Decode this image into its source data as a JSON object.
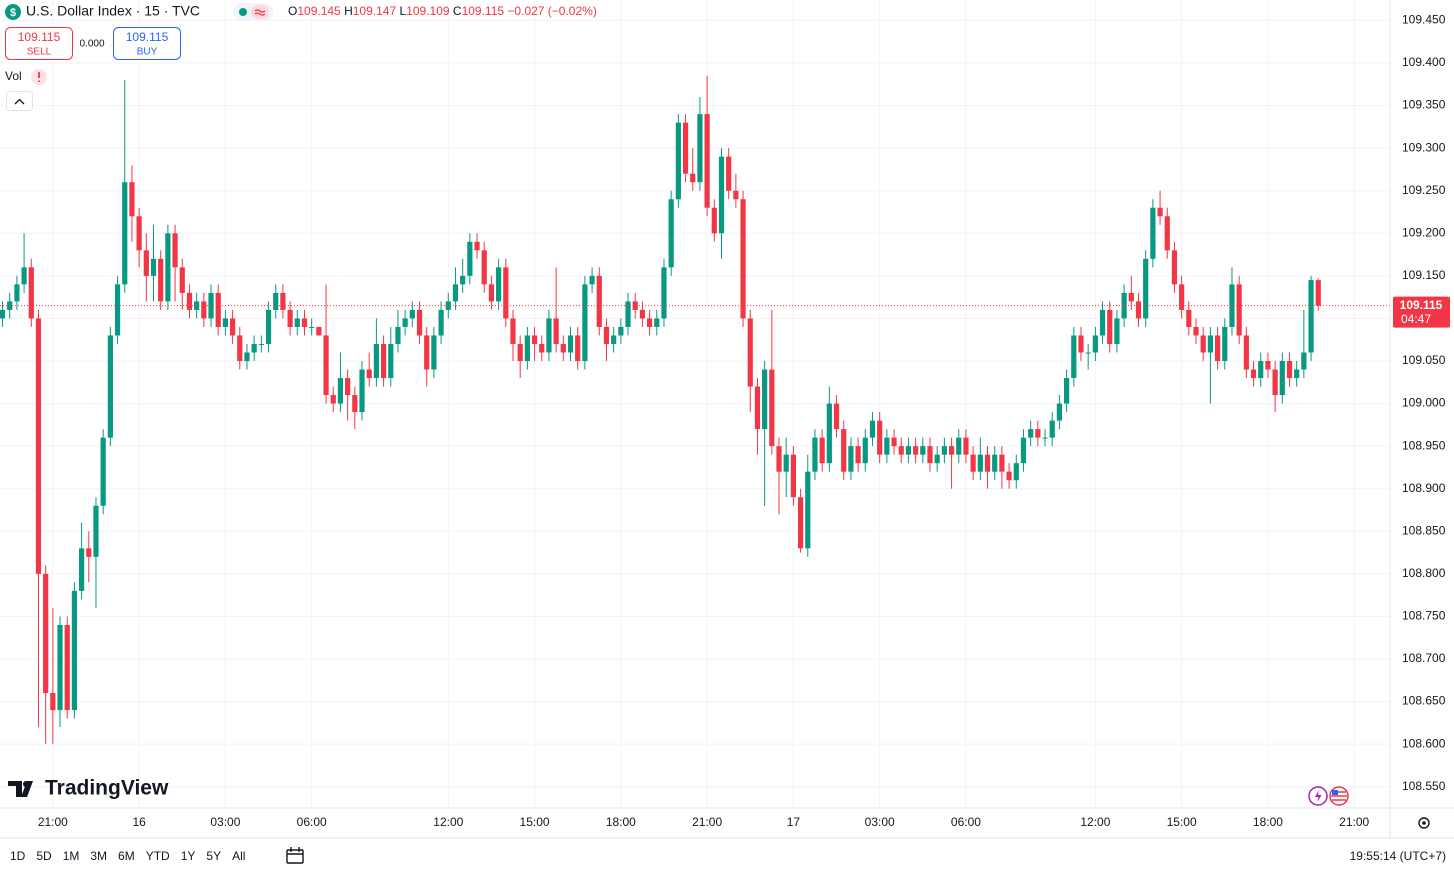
{
  "header": {
    "icon": "$",
    "symbol": "U.S. Dollar Index · 15 · TVC",
    "ohlc": [
      {
        "k": "O",
        "v": "109.145"
      },
      {
        "k": "H",
        "v": "109.147"
      },
      {
        "k": "L",
        "v": "109.109"
      },
      {
        "k": "C",
        "v": "109.115"
      }
    ],
    "change": "−0.027 (−0.02%)",
    "sell_price": "109.115",
    "sell": "SELL",
    "spread": "0.000",
    "buy_price": "109.115",
    "buy": "BUY",
    "vol": "Vol"
  },
  "last_price": {
    "value": 109.115,
    "label": "109.115",
    "countdown": "04:47"
  },
  "brand": "TradingView",
  "toolbar": [
    "1D",
    "5D",
    "1M",
    "3M",
    "6M",
    "YTD",
    "1Y",
    "5Y",
    "All"
  ],
  "clock": "19:55:14 (UTC+7)",
  "chart_data": {
    "type": "candlestick",
    "up_color": "#089981",
    "down_color": "#f23645",
    "grid": true,
    "xlim": [
      -0.35,
      192.98
    ],
    "xticks": [
      {
        "value": 7,
        "label": "21:00"
      },
      {
        "value": 19,
        "label": "16"
      },
      {
        "value": 31,
        "label": "03:00"
      },
      {
        "value": 43,
        "label": "06:00"
      },
      {
        "value": 62,
        "label": "12:00"
      },
      {
        "value": 74,
        "label": "15:00"
      },
      {
        "value": 86,
        "label": "18:00"
      },
      {
        "value": 98,
        "label": "21:00"
      },
      {
        "value": 110,
        "label": "17"
      },
      {
        "value": 122,
        "label": "03:00"
      },
      {
        "value": 134,
        "label": "06:00"
      },
      {
        "value": 152,
        "label": "12:00"
      },
      {
        "value": 164,
        "label": "15:00"
      },
      {
        "value": 176,
        "label": "18:00"
      },
      {
        "value": 188,
        "label": "21:00"
      }
    ],
    "ylim": [
      108.525,
      109.474
    ],
    "yticks": [
      {
        "value": 108.55,
        "label": "108.550"
      },
      {
        "value": 108.6,
        "label": "108.600"
      },
      {
        "value": 108.65,
        "label": "108.650"
      },
      {
        "value": 108.7,
        "label": "108.700"
      },
      {
        "value": 108.75,
        "label": "108.750"
      },
      {
        "value": 108.8,
        "label": "108.800"
      },
      {
        "value": 108.85,
        "label": "108.850"
      },
      {
        "value": 108.9,
        "label": "108.900"
      },
      {
        "value": 108.95,
        "label": "108.950"
      },
      {
        "value": 109.0,
        "label": "109.000"
      },
      {
        "value": 109.05,
        "label": "109.050"
      },
      {
        "value": 109.1,
        "label": "109.100"
      },
      {
        "value": 109.15,
        "label": "109.150"
      },
      {
        "value": 109.2,
        "label": "109.200"
      },
      {
        "value": 109.25,
        "label": "109.250"
      },
      {
        "value": 109.3,
        "label": "109.300"
      },
      {
        "value": 109.35,
        "label": "109.350"
      },
      {
        "value": 109.4,
        "label": "109.400"
      },
      {
        "value": 109.45,
        "label": "109.450"
      }
    ],
    "open": [
      109.1,
      109.11,
      109.12,
      109.14,
      109.16,
      109.1,
      108.8,
      108.66,
      108.64,
      108.74,
      108.64,
      108.78,
      108.83,
      108.82,
      108.88,
      108.96,
      109.08,
      109.14,
      109.26,
      109.22,
      109.18,
      109.15,
      109.17,
      109.12,
      109.2,
      109.16,
      109.13,
      109.11,
      109.12,
      109.1,
      109.13,
      109.09,
      109.1,
      109.08,
      109.05,
      109.06,
      109.07,
      109.07,
      109.11,
      109.13,
      109.11,
      109.09,
      109.1,
      109.09,
      109.09,
      109.08,
      109.01,
      109.0,
      109.03,
      109.01,
      108.99,
      109.04,
      109.03,
      109.07,
      109.03,
      109.07,
      109.09,
      109.1,
      109.11,
      109.08,
      109.04,
      109.08,
      109.11,
      109.12,
      109.14,
      109.15,
      109.19,
      109.18,
      109.14,
      109.12,
      109.16,
      109.1,
      109.07,
      109.05,
      109.08,
      109.07,
      109.06,
      109.1,
      109.07,
      109.06,
      109.08,
      109.05,
      109.14,
      109.15,
      109.09,
      109.07,
      109.08,
      109.09,
      109.12,
      109.11,
      109.1,
      109.09,
      109.1,
      109.16,
      109.24,
      109.33,
      109.27,
      109.26,
      109.34,
      109.23,
      109.2,
      109.29,
      109.25,
      109.24,
      109.1,
      109.02,
      108.97,
      109.04,
      108.95,
      108.92,
      108.94,
      108.89,
      108.83,
      108.92,
      108.96,
      108.93,
      109.0,
      108.97,
      108.92,
      108.95,
      108.93,
      108.96,
      108.98,
      108.94,
      108.96,
      108.95,
      108.94,
      108.95,
      108.94,
      108.95,
      108.93,
      108.94,
      108.95,
      108.94,
      108.96,
      108.94,
      108.92,
      108.94,
      108.92,
      108.94,
      108.92,
      108.91,
      108.93,
      108.96,
      108.97,
      108.96,
      108.96,
      108.98,
      109.0,
      109.03,
      109.08,
      109.06,
      109.06,
      109.08,
      109.11,
      109.07,
      109.1,
      109.13,
      109.12,
      109.1,
      109.17,
      109.23,
      109.22,
      109.18,
      109.14,
      109.11,
      109.09,
      109.08,
      109.06,
      109.08,
      109.05,
      109.09,
      109.14,
      109.08,
      109.04,
      109.03,
      109.05,
      109.04,
      109.01,
      109.05,
      109.03,
      109.04,
      109.06,
      109.145
    ],
    "high": [
      109.12,
      109.13,
      109.15,
      109.2,
      109.17,
      109.11,
      108.81,
      108.76,
      108.75,
      108.75,
      108.79,
      108.86,
      108.85,
      108.89,
      108.97,
      109.09,
      109.15,
      109.38,
      109.28,
      109.23,
      109.2,
      109.21,
      109.18,
      109.21,
      109.21,
      109.17,
      109.14,
      109.13,
      109.13,
      109.14,
      109.14,
      109.11,
      109.11,
      109.09,
      109.07,
      109.08,
      109.08,
      109.12,
      109.14,
      109.14,
      109.12,
      109.11,
      109.11,
      109.1,
      109.09,
      109.14,
      109.02,
      109.06,
      109.04,
      109.02,
      109.05,
      109.06,
      109.1,
      109.08,
      109.09,
      109.11,
      109.11,
      109.12,
      109.12,
      109.09,
      109.09,
      109.12,
      109.13,
      109.16,
      109.17,
      109.2,
      109.2,
      109.19,
      109.15,
      109.17,
      109.17,
      109.11,
      109.08,
      109.09,
      109.09,
      109.08,
      109.11,
      109.16,
      109.08,
      109.09,
      109.09,
      109.15,
      109.16,
      109.16,
      109.1,
      109.09,
      109.1,
      109.13,
      109.13,
      109.12,
      109.11,
      109.11,
      109.17,
      109.25,
      109.34,
      109.34,
      109.3,
      109.36,
      109.385,
      109.24,
      109.3,
      109.3,
      109.27,
      109.25,
      109.11,
      109.03,
      109.05,
      109.11,
      108.96,
      108.96,
      108.95,
      108.9,
      108.94,
      108.97,
      108.97,
      109.02,
      109.01,
      108.98,
      108.96,
      108.96,
      108.97,
      108.99,
      108.99,
      108.97,
      108.97,
      108.96,
      108.96,
      108.96,
      108.96,
      108.96,
      108.95,
      108.96,
      108.96,
      108.97,
      108.97,
      108.95,
      108.96,
      108.95,
      108.95,
      108.95,
      108.93,
      108.94,
      108.97,
      108.98,
      108.98,
      108.97,
      108.99,
      109.01,
      109.04,
      109.09,
      109.09,
      109.07,
      109.09,
      109.12,
      109.12,
      109.11,
      109.14,
      109.15,
      109.13,
      109.18,
      109.24,
      109.25,
      109.23,
      109.19,
      109.15,
      109.12,
      109.1,
      109.09,
      109.09,
      109.09,
      109.1,
      109.16,
      109.15,
      109.09,
      109.05,
      109.06,
      109.06,
      109.05,
      109.06,
      109.06,
      109.05,
      109.11,
      109.15,
      109.147
    ],
    "low": [
      109.09,
      109.1,
      109.11,
      109.13,
      109.09,
      108.62,
      108.6,
      108.6,
      108.62,
      108.63,
      108.63,
      108.77,
      108.79,
      108.76,
      108.87,
      108.95,
      109.07,
      109.13,
      109.19,
      109.16,
      109.12,
      109.12,
      109.11,
      109.11,
      109.12,
      109.11,
      109.1,
      109.1,
      109.09,
      109.09,
      109.08,
      109.08,
      109.07,
      109.04,
      109.04,
      109.05,
      109.06,
      109.06,
      109.1,
      109.1,
      109.08,
      109.08,
      109.08,
      109.08,
      109.08,
      109.0,
      108.99,
      108.99,
      108.98,
      108.97,
      108.98,
      109.02,
      109.02,
      109.02,
      109.02,
      109.06,
      109.08,
      109.09,
      109.07,
      109.02,
      109.03,
      109.07,
      109.1,
      109.11,
      109.13,
      109.14,
      109.17,
      109.13,
      109.11,
      109.11,
      109.09,
      109.05,
      109.03,
      109.04,
      109.05,
      109.05,
      109.05,
      109.06,
      109.05,
      109.05,
      109.04,
      109.04,
      109.13,
      109.08,
      109.05,
      109.06,
      109.07,
      109.08,
      109.1,
      109.09,
      109.08,
      109.08,
      109.09,
      109.15,
      109.23,
      109.26,
      109.25,
      109.25,
      109.22,
      109.19,
      109.17,
      109.24,
      109.23,
      109.09,
      108.99,
      108.94,
      108.88,
      108.94,
      108.87,
      108.89,
      108.88,
      108.825,
      108.82,
      108.91,
      108.92,
      108.92,
      108.96,
      108.91,
      108.91,
      108.92,
      108.92,
      108.95,
      108.93,
      108.93,
      108.94,
      108.93,
      108.93,
      108.93,
      108.93,
      108.92,
      108.92,
      108.93,
      108.9,
      108.93,
      108.93,
      108.91,
      108.91,
      108.9,
      108.91,
      108.9,
      108.9,
      108.9,
      108.92,
      108.95,
      108.95,
      108.95,
      108.95,
      108.97,
      108.99,
      109.02,
      109.05,
      109.04,
      109.05,
      109.07,
      109.06,
      109.06,
      109.09,
      109.11,
      109.09,
      109.09,
      109.16,
      109.21,
      109.17,
      109.13,
      109.1,
      109.08,
      109.07,
      109.05,
      109.0,
      109.04,
      109.04,
      109.08,
      109.07,
      109.03,
      109.02,
      109.02,
      109.03,
      108.99,
      109.0,
      109.02,
      109.02,
      109.03,
      109.05,
      109.109
    ],
    "close": [
      109.11,
      109.12,
      109.14,
      109.16,
      109.1,
      108.8,
      108.66,
      108.64,
      108.74,
      108.64,
      108.78,
      108.83,
      108.82,
      108.88,
      108.96,
      109.08,
      109.14,
      109.26,
      109.22,
      109.18,
      109.15,
      109.17,
      109.12,
      109.2,
      109.16,
      109.13,
      109.11,
      109.12,
      109.1,
      109.13,
      109.09,
      109.1,
      109.08,
      109.05,
      109.06,
      109.07,
      109.07,
      109.11,
      109.13,
      109.11,
      109.09,
      109.1,
      109.09,
      109.09,
      109.08,
      109.01,
      109.0,
      109.03,
      109.01,
      108.99,
      109.04,
      109.03,
      109.07,
      109.03,
      109.07,
      109.09,
      109.1,
      109.11,
      109.08,
      109.04,
      109.08,
      109.11,
      109.12,
      109.14,
      109.15,
      109.19,
      109.18,
      109.14,
      109.12,
      109.16,
      109.1,
      109.07,
      109.05,
      109.08,
      109.07,
      109.06,
      109.1,
      109.07,
      109.06,
      109.08,
      109.05,
      109.14,
      109.15,
      109.09,
      109.07,
      109.08,
      109.09,
      109.12,
      109.11,
      109.1,
      109.09,
      109.1,
      109.16,
      109.24,
      109.33,
      109.27,
      109.26,
      109.34,
      109.23,
      109.2,
      109.29,
      109.25,
      109.24,
      109.1,
      109.02,
      108.97,
      109.04,
      108.95,
      108.92,
      108.94,
      108.89,
      108.83,
      108.92,
      108.96,
      108.93,
      109.0,
      108.97,
      108.92,
      108.95,
      108.93,
      108.96,
      108.98,
      108.94,
      108.96,
      108.95,
      108.94,
      108.95,
      108.94,
      108.95,
      108.93,
      108.94,
      108.95,
      108.94,
      108.96,
      108.94,
      108.92,
      108.94,
      108.92,
      108.94,
      108.92,
      108.91,
      108.93,
      108.96,
      108.97,
      108.96,
      108.96,
      108.98,
      109.0,
      109.03,
      109.08,
      109.06,
      109.06,
      109.08,
      109.11,
      109.07,
      109.1,
      109.13,
      109.12,
      109.1,
      109.17,
      109.23,
      109.22,
      109.18,
      109.14,
      109.11,
      109.09,
      109.08,
      109.06,
      109.08,
      109.05,
      109.09,
      109.14,
      109.08,
      109.04,
      109.03,
      109.05,
      109.04,
      109.01,
      109.05,
      109.03,
      109.04,
      109.06,
      109.145,
      109.115
    ]
  }
}
